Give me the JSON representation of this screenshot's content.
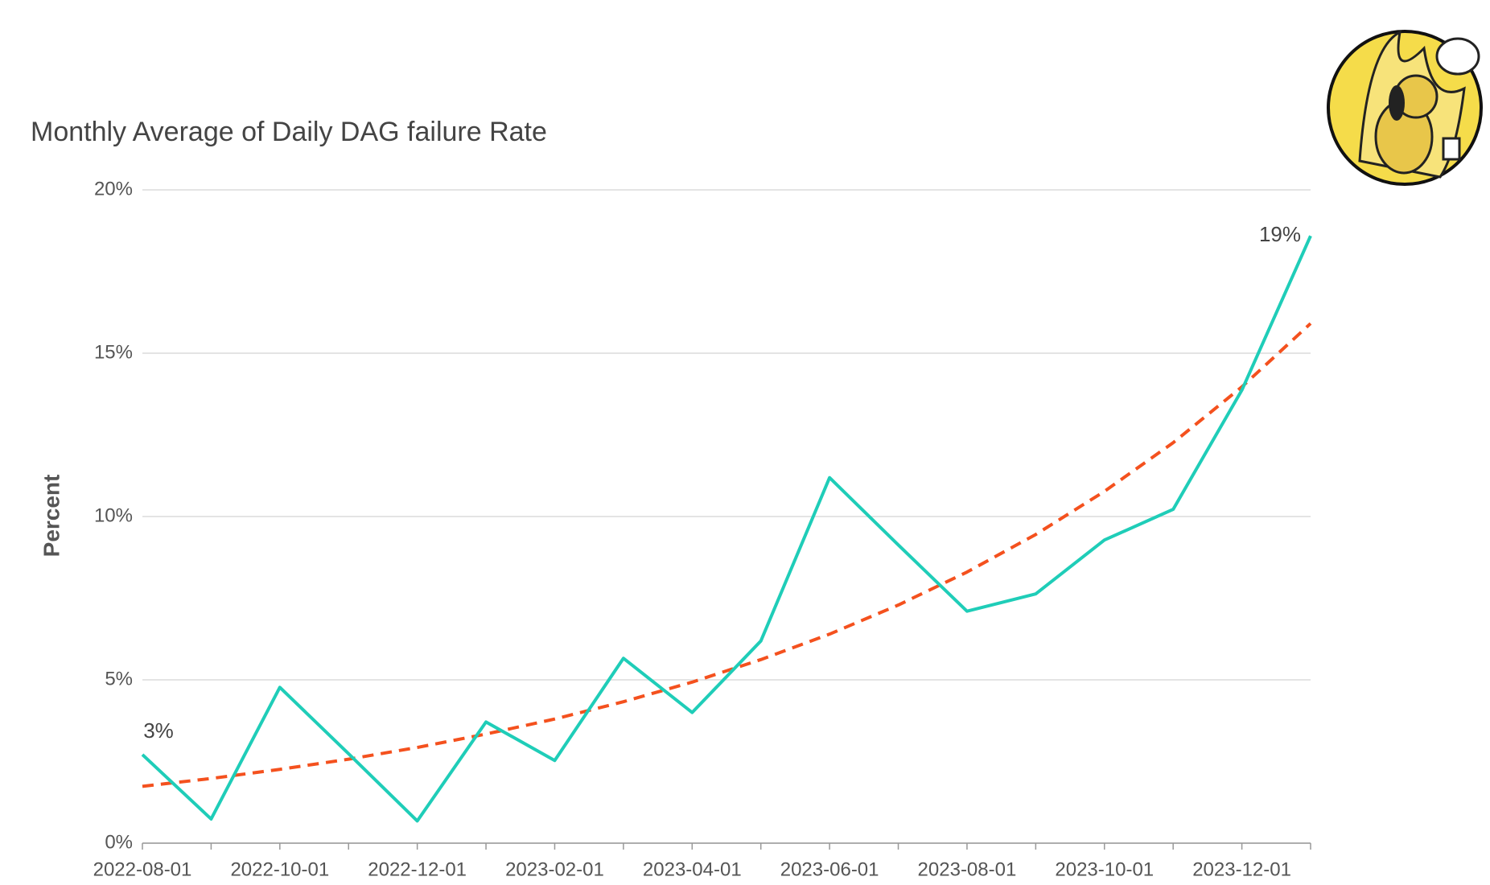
{
  "chart_data": {
    "type": "line",
    "title": "Monthly Average of Daily DAG failure Rate",
    "y_label": "Percent",
    "categories": [
      "2022-08-01",
      null,
      "2022-10-01",
      null,
      "2022-12-01",
      null,
      "2023-02-01",
      null,
      "2023-04-01",
      null,
      "2023-06-01",
      null,
      "2023-08-01",
      null,
      "2023-10-01",
      null,
      "2023-12-01",
      null
    ],
    "series": [
      {
        "color": "#1fcdb8",
        "style": "solid",
        "values": [
          2.71,
          0.74,
          4.77,
          2.74,
          0.68,
          3.71,
          2.53,
          5.66,
          4.0,
          6.19,
          11.19,
          9.13,
          7.1,
          7.63,
          9.28,
          10.22,
          13.87,
          18.59
        ],
        "value_labels": [
          "3%",
          null,
          null,
          null,
          null,
          null,
          null,
          null,
          null,
          null,
          null,
          null,
          null,
          null,
          null,
          null,
          null,
          "19%"
        ]
      },
      {
        "color": "#f4511e",
        "style": "dashed",
        "values": [
          1.74,
          1.98,
          2.26,
          2.57,
          2.93,
          3.34,
          3.8,
          4.33,
          4.93,
          5.62,
          6.4,
          7.29,
          8.3,
          9.45,
          10.77,
          12.26,
          13.97,
          15.91
        ]
      }
    ],
    "ylim": [
      0,
      20
    ],
    "yticks": [
      {
        "value": 0,
        "label": "0%"
      },
      {
        "value": 5,
        "label": "5%"
      },
      {
        "value": 10,
        "label": "10%"
      },
      {
        "value": 15,
        "label": "15%"
      },
      {
        "value": 20,
        "label": "20%"
      }
    ],
    "grid": true
  }
}
